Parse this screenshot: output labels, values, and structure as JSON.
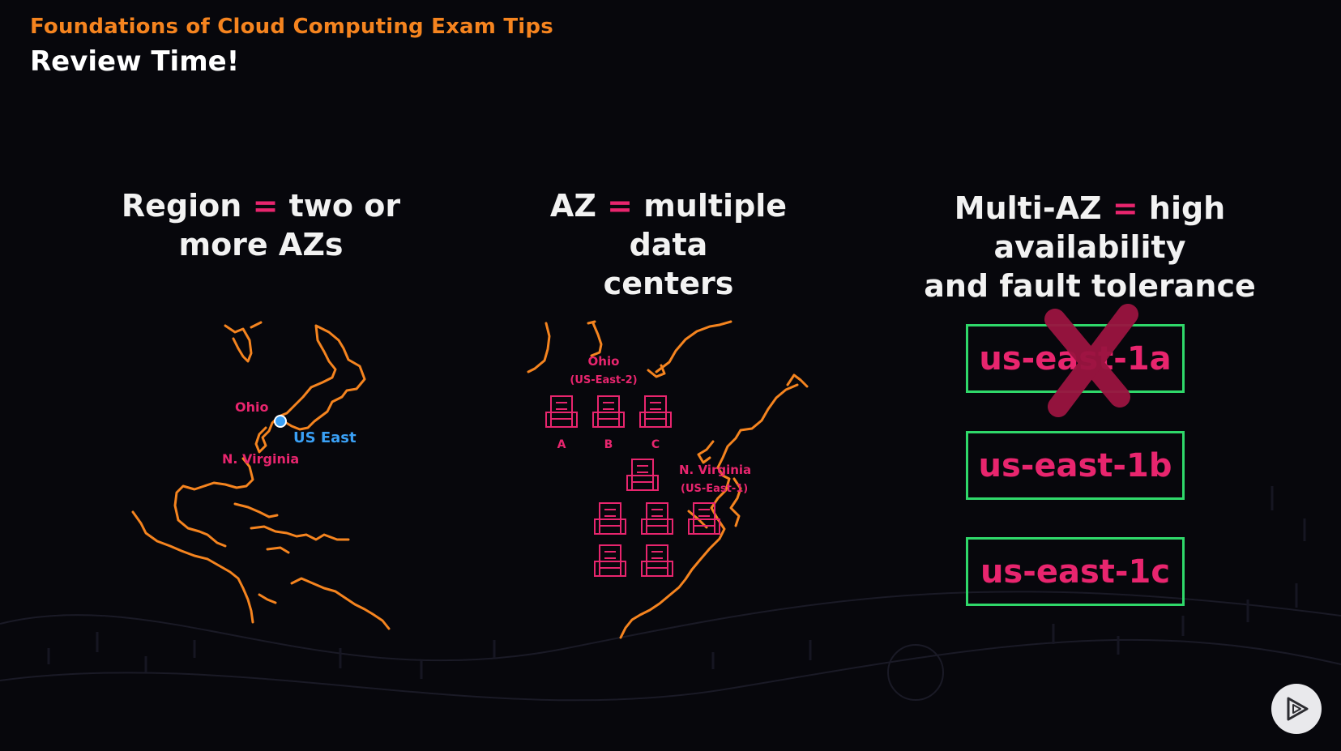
{
  "header": {
    "subtitle": "Foundations of Cloud Computing Exam Tips",
    "title": "Review Time!"
  },
  "columns": [
    {
      "term": "Region",
      "eq": "=",
      "line1_rest": "two or",
      "line2": "more AZs"
    },
    {
      "term": "AZ",
      "eq": "=",
      "line1_rest": "multiple data",
      "line2": "centers"
    },
    {
      "term": "Multi-AZ",
      "eq": "=",
      "line1_rest": "high availability",
      "line2": "and fault tolerance"
    }
  ],
  "region_map": {
    "ohio_label": "Ohio",
    "us_east_label": "US East",
    "virginia_label": "N. Virginia"
  },
  "az_map": {
    "ohio_label": "Ohio",
    "ohio_code": "(US-East-2)",
    "dc_labels": [
      "A",
      "B",
      "C"
    ],
    "virginia_label": "N. Virginia",
    "virginia_code": "(US-East-1)"
  },
  "availability_zones": [
    {
      "name": "us-east-1a",
      "status": "failed"
    },
    {
      "name": "us-east-1b",
      "status": "ok"
    },
    {
      "name": "us-east-1c",
      "status": "ok"
    }
  ],
  "colors": {
    "accent_orange": "#f5841f",
    "accent_pink": "#e8256e",
    "map_blue": "#3aa0f5",
    "box_green": "#2fd86a",
    "x_red": "#9b1440"
  },
  "icons": {
    "play": "play-triangle-icon",
    "fail": "x-mark-icon",
    "datacenter": "building-icon"
  }
}
